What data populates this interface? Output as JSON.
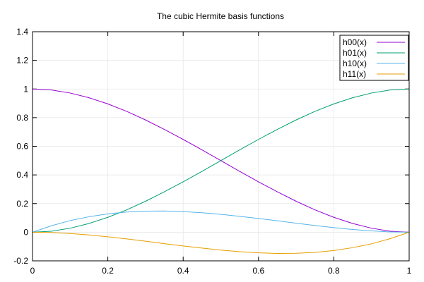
{
  "chart_data": {
    "type": "line",
    "title": "The cubic Hermite basis functions",
    "xlabel": "",
    "ylabel": "",
    "xlim": [
      0,
      1
    ],
    "ylim": [
      -0.2,
      1.4
    ],
    "x_ticks": [
      "0",
      "0.2",
      "0.4",
      "0.6",
      "0.8",
      "1"
    ],
    "y_ticks": [
      "-0.2",
      "0",
      "0.2",
      "0.4",
      "0.6",
      "0.8",
      "1",
      "1.2",
      "1.4"
    ],
    "grid": true,
    "legend_position": "top-right",
    "x": [
      0,
      0.05,
      0.1,
      0.15,
      0.2,
      0.25,
      0.3,
      0.35,
      0.4,
      0.45,
      0.5,
      0.55,
      0.6,
      0.65,
      0.7,
      0.75,
      0.8,
      0.85,
      0.9,
      0.95,
      1
    ],
    "series": [
      {
        "name": "h00(x)",
        "color": "#9400d3",
        "values": [
          1,
          0.993,
          0.972,
          0.939,
          0.896,
          0.844,
          0.784,
          0.718,
          0.648,
          0.575,
          0.5,
          0.425,
          0.352,
          0.282,
          0.216,
          0.156,
          0.104,
          0.061,
          0.028,
          0.007,
          0
        ]
      },
      {
        "name": "h01(x)",
        "color": "#009e73",
        "values": [
          0,
          0.007,
          0.028,
          0.061,
          0.104,
          0.156,
          0.216,
          0.282,
          0.352,
          0.425,
          0.5,
          0.575,
          0.648,
          0.718,
          0.784,
          0.844,
          0.896,
          0.939,
          0.972,
          0.993,
          1
        ]
      },
      {
        "name": "h10(x)",
        "color": "#56b4e9",
        "values": [
          0,
          0.045,
          0.081,
          0.108,
          0.128,
          0.141,
          0.147,
          0.148,
          0.144,
          0.136,
          0.125,
          0.111,
          0.096,
          0.08,
          0.063,
          0.047,
          0.032,
          0.019,
          0.009,
          0.002,
          0
        ]
      },
      {
        "name": "h11(x)",
        "color": "#e69f00",
        "values": [
          0,
          -0.002,
          -0.009,
          -0.019,
          -0.032,
          -0.047,
          -0.063,
          -0.08,
          -0.096,
          -0.111,
          -0.125,
          -0.136,
          -0.144,
          -0.148,
          -0.147,
          -0.141,
          -0.128,
          -0.108,
          -0.081,
          -0.045,
          0
        ]
      }
    ]
  }
}
